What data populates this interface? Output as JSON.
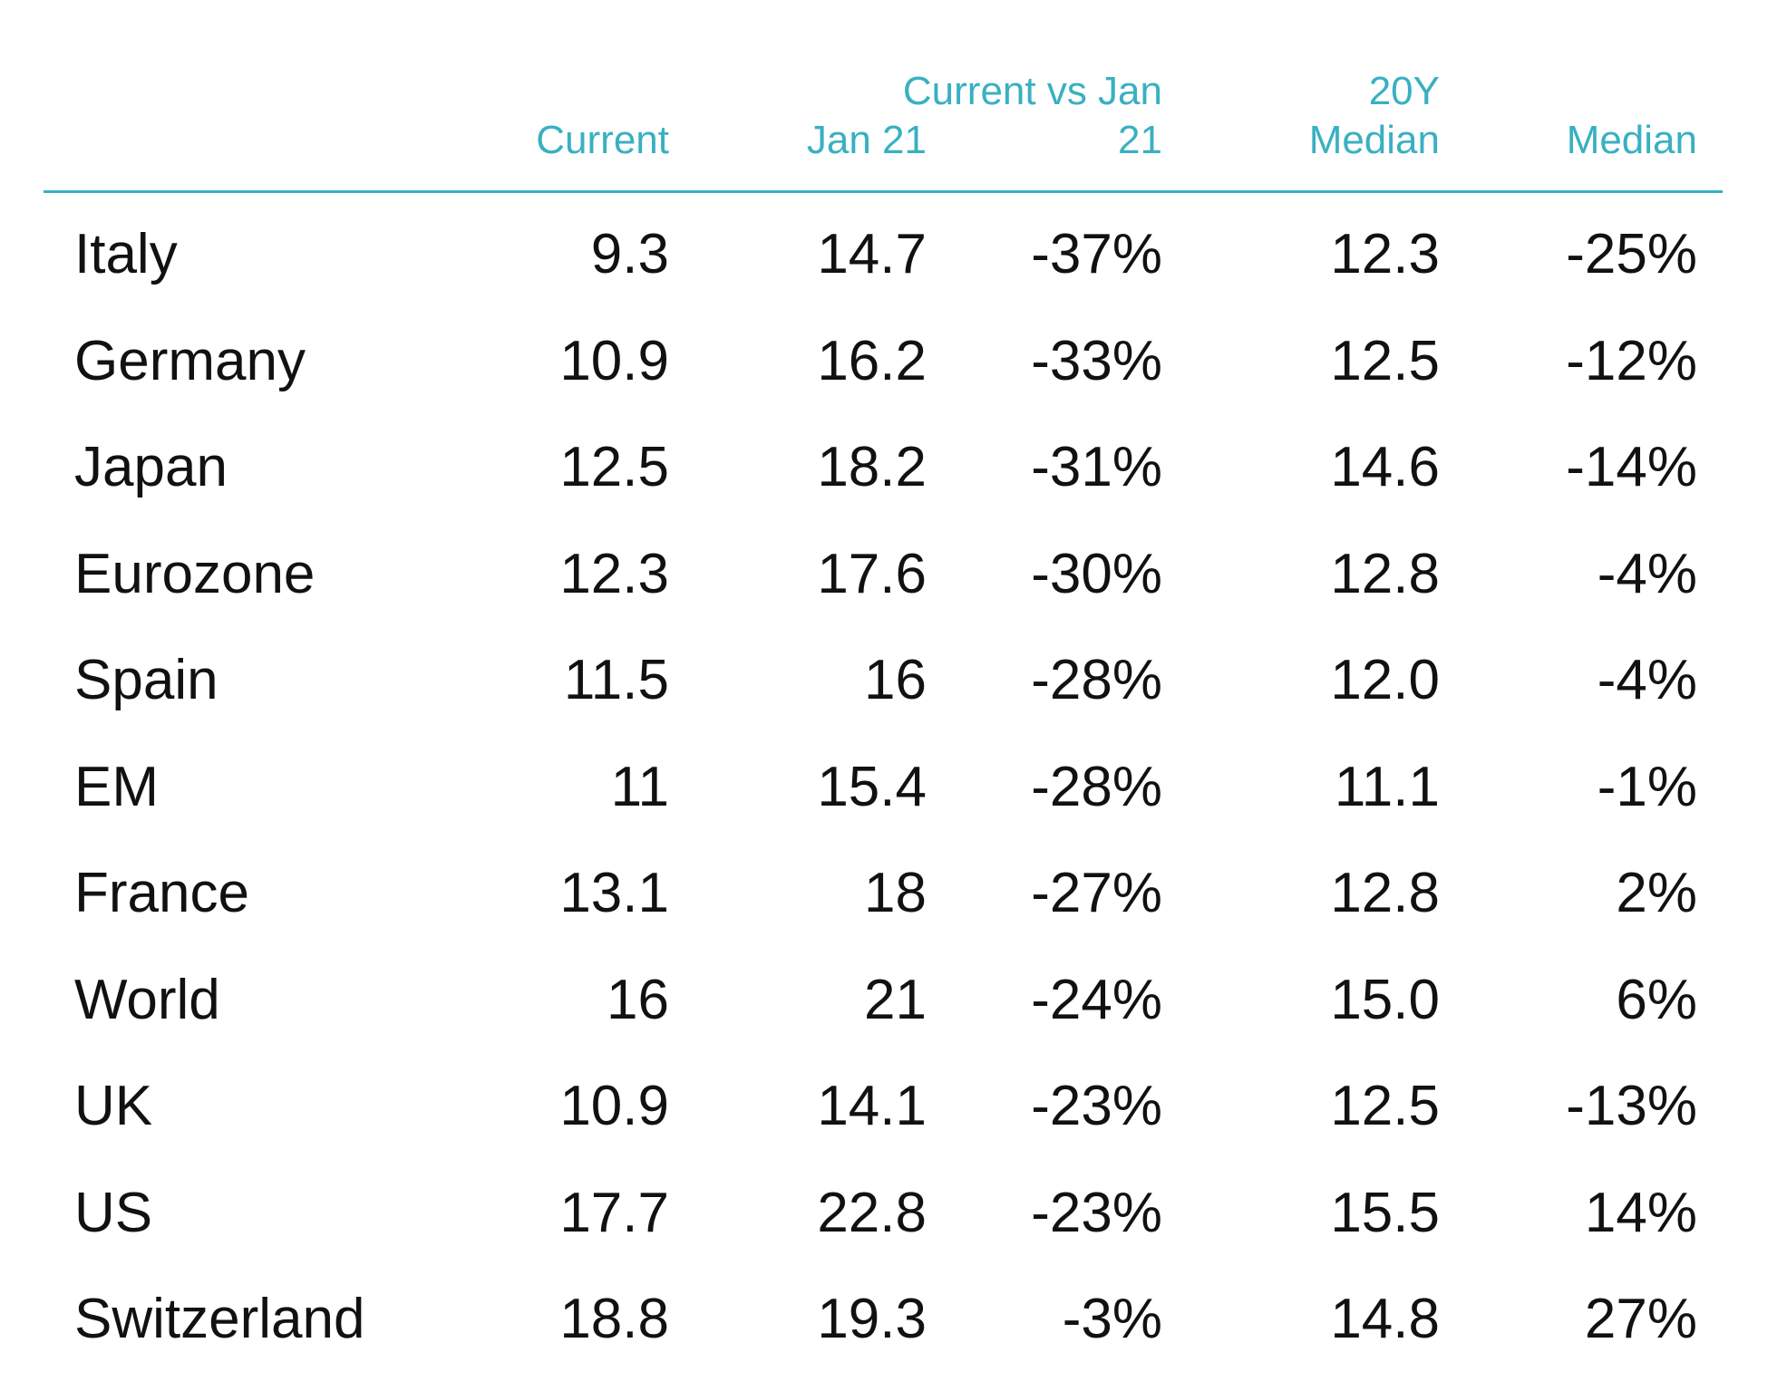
{
  "colors": {
    "header_text": "#39b0c2",
    "rule": "#39b0c2",
    "body_text": "#111111"
  },
  "chart_data": {
    "type": "table",
    "columns": [
      "",
      "Current",
      "Jan 21",
      "Current vs Jan 21",
      "20Y Median",
      "Median"
    ],
    "rows": [
      [
        "Italy",
        "9.3",
        "14.7",
        "-37%",
        "12.3",
        "-25%"
      ],
      [
        "Germany",
        "10.9",
        "16.2",
        "-33%",
        "12.5",
        "-12%"
      ],
      [
        "Japan",
        "12.5",
        "18.2",
        "-31%",
        "14.6",
        "-14%"
      ],
      [
        "Eurozone",
        "12.3",
        "17.6",
        "-30%",
        "12.8",
        "-4%"
      ],
      [
        "Spain",
        "11.5",
        "16",
        "-28%",
        "12.0",
        "-4%"
      ],
      [
        "EM",
        "11",
        "15.4",
        "-28%",
        "11.1",
        "-1%"
      ],
      [
        "France",
        "13.1",
        "18",
        "-27%",
        "12.8",
        "2%"
      ],
      [
        "World",
        "16",
        "21",
        "-24%",
        "15.0",
        "6%"
      ],
      [
        "UK",
        "10.9",
        "14.1",
        "-23%",
        "12.5",
        "-13%"
      ],
      [
        "US",
        "17.7",
        "22.8",
        "-23%",
        "15.5",
        "14%"
      ],
      [
        "Switzerland",
        "18.8",
        "19.3",
        "-3%",
        "14.8",
        "27%"
      ]
    ]
  }
}
